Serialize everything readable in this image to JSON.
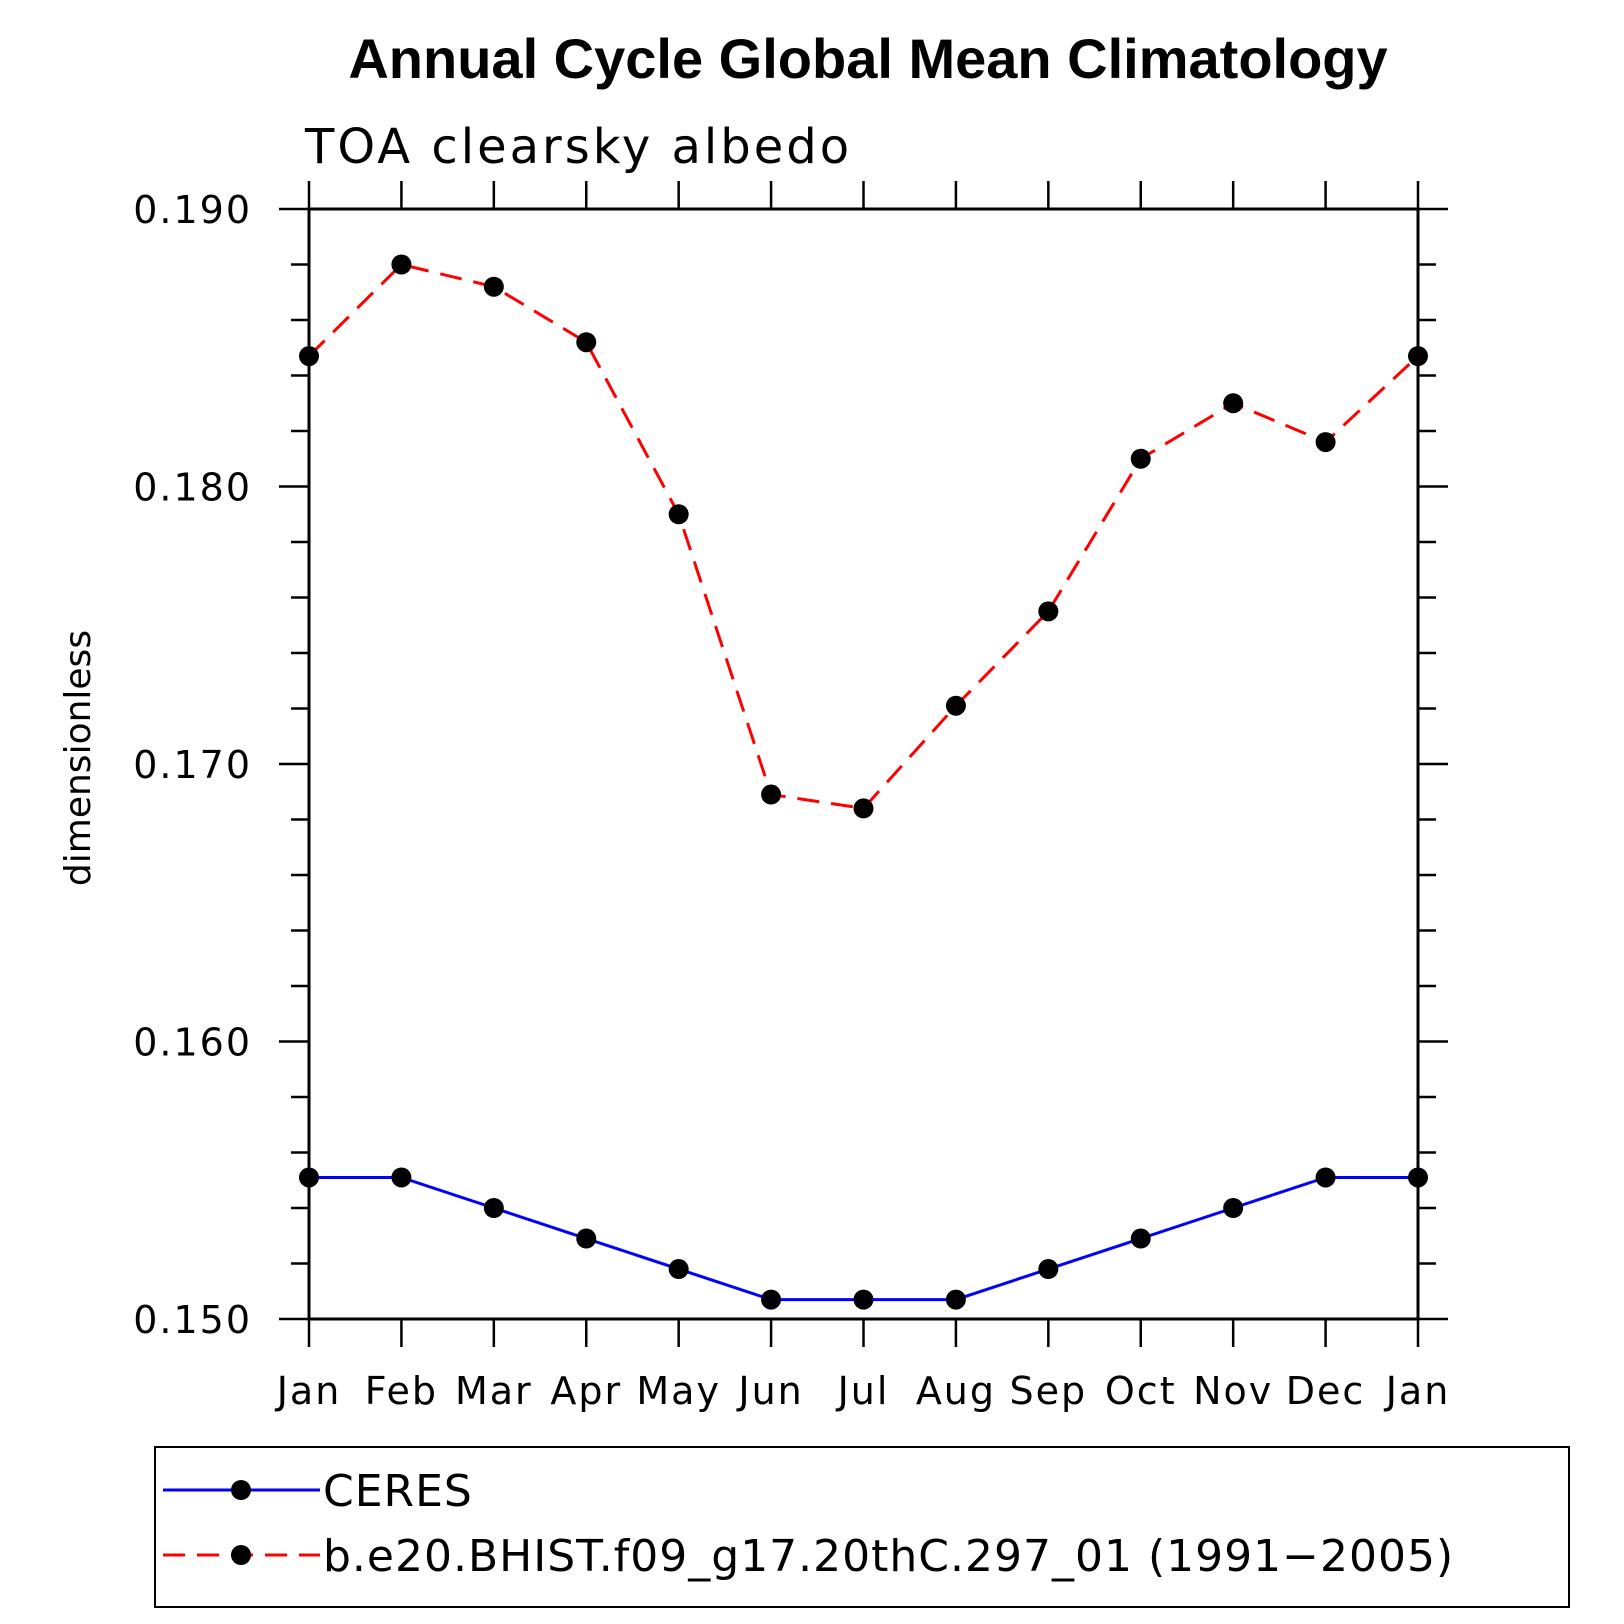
{
  "chart_data": {
    "type": "line",
    "title": "Annual Cycle Global Mean Climatology",
    "subtitle": "TOA clearsky albedo",
    "xlabel": "",
    "ylabel": "dimensionless",
    "categories": [
      "Jan",
      "Feb",
      "Mar",
      "Apr",
      "May",
      "Jun",
      "Jul",
      "Aug",
      "Sep",
      "Oct",
      "Nov",
      "Dec",
      "Jan"
    ],
    "ylim": [
      0.15,
      0.19
    ],
    "yticks": [
      "0.150",
      "0.160",
      "0.170",
      "0.180",
      "0.190"
    ],
    "grid": false,
    "legend_position": "bottom",
    "series": [
      {
        "name": "CERES",
        "color": "#0000ff",
        "dash": "solid",
        "values": [
          0.1551,
          0.1551,
          0.154,
          0.1529,
          0.1518,
          0.1507,
          0.1507,
          0.1507,
          0.1518,
          0.1529,
          0.154,
          0.1551,
          0.1551
        ]
      },
      {
        "name": "b.e20.BHIST.f09_g17.20thC.297_01 (1991−2005)",
        "color": "#ff0000",
        "dash": "dashed",
        "values": [
          0.1847,
          0.188,
          0.1872,
          0.1852,
          0.179,
          0.1689,
          0.1684,
          0.1721,
          0.1755,
          0.181,
          0.183,
          0.1816,
          0.1847
        ]
      }
    ]
  }
}
